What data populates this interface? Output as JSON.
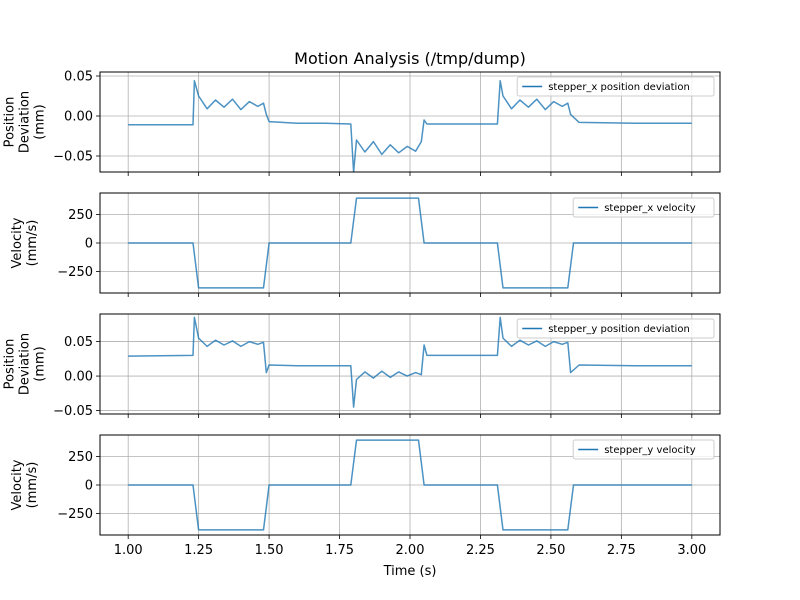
{
  "chart_data": {
    "type": "line",
    "title": "Motion Analysis (/tmp/dump)",
    "xlabel": "Time (s)",
    "xlim": [
      0.9,
      3.1
    ],
    "xticks": [
      1.0,
      1.25,
      1.5,
      1.75,
      2.0,
      2.25,
      2.5,
      2.75,
      3.0
    ],
    "xtick_labels": [
      "1.00",
      "1.25",
      "1.50",
      "1.75",
      "2.00",
      "2.25",
      "2.50",
      "2.75",
      "3.00"
    ],
    "grid": true,
    "line_color": "#1f77b4",
    "panels": [
      {
        "ylabel": [
          "Position",
          "Deviation",
          "(mm)"
        ],
        "ylim": [
          -0.07,
          0.055
        ],
        "yticks": [
          0.05,
          0.0,
          -0.05
        ],
        "ytick_labels": [
          "0.05",
          "0.00",
          "−0.05"
        ],
        "legend": "upper right",
        "series": [
          {
            "name": "stepper_x position deviation",
            "x": [
              1.0,
              1.23,
              1.235,
              1.25,
              1.28,
              1.31,
              1.34,
              1.37,
              1.4,
              1.43,
              1.46,
              1.48,
              1.49,
              1.5,
              1.6,
              1.7,
              1.79,
              1.8,
              1.81,
              1.84,
              1.87,
              1.9,
              1.93,
              1.96,
              1.99,
              2.02,
              2.04,
              2.05,
              2.06,
              2.1,
              2.2,
              2.31,
              2.32,
              2.33,
              2.36,
              2.39,
              2.42,
              2.45,
              2.48,
              2.51,
              2.54,
              2.56,
              2.57,
              2.6,
              2.8,
              3.0
            ],
            "y": [
              -0.011,
              -0.011,
              0.044,
              0.025,
              0.009,
              0.02,
              0.011,
              0.021,
              0.008,
              0.018,
              0.012,
              0.016,
              0.002,
              -0.007,
              -0.009,
              -0.009,
              -0.01,
              -0.07,
              -0.03,
              -0.045,
              -0.032,
              -0.048,
              -0.036,
              -0.046,
              -0.038,
              -0.044,
              -0.032,
              -0.005,
              -0.01,
              -0.01,
              -0.01,
              -0.01,
              0.044,
              0.025,
              0.009,
              0.02,
              0.011,
              0.021,
              0.008,
              0.018,
              0.012,
              0.016,
              0.002,
              -0.008,
              -0.009,
              -0.009
            ]
          }
        ]
      },
      {
        "ylabel": [
          "Velocity",
          "(mm/s)"
        ],
        "ylim": [
          -440,
          440
        ],
        "yticks": [
          250,
          0,
          -250
        ],
        "ytick_labels": [
          "250",
          "0",
          "−250"
        ],
        "legend": "upper right",
        "series": [
          {
            "name": "stepper_x velocity",
            "x": [
              1.0,
              1.23,
              1.25,
              1.48,
              1.5,
              1.79,
              1.81,
              2.03,
              2.05,
              2.31,
              2.33,
              2.56,
              2.58,
              3.0
            ],
            "y": [
              0,
              0,
              -395,
              -395,
              0,
              0,
              395,
              395,
              0,
              0,
              -395,
              -395,
              0,
              0
            ]
          }
        ]
      },
      {
        "ylabel": [
          "Position",
          "Deviation",
          "(mm)"
        ],
        "ylim": [
          -0.055,
          0.09
        ],
        "yticks": [
          0.05,
          0.0,
          -0.05
        ],
        "ytick_labels": [
          "0.05",
          "0.00",
          "−0.05"
        ],
        "legend": "upper right",
        "series": [
          {
            "name": "stepper_y position deviation",
            "x": [
              1.0,
              1.23,
              1.235,
              1.25,
              1.28,
              1.31,
              1.34,
              1.37,
              1.4,
              1.43,
              1.46,
              1.48,
              1.49,
              1.5,
              1.6,
              1.7,
              1.79,
              1.8,
              1.81,
              1.84,
              1.87,
              1.9,
              1.93,
              1.96,
              1.99,
              2.02,
              2.04,
              2.05,
              2.06,
              2.1,
              2.2,
              2.31,
              2.32,
              2.33,
              2.36,
              2.39,
              2.42,
              2.45,
              2.48,
              2.51,
              2.54,
              2.56,
              2.57,
              2.6,
              2.8,
              3.0
            ],
            "y": [
              0.029,
              0.03,
              0.085,
              0.055,
              0.043,
              0.052,
              0.045,
              0.051,
              0.043,
              0.05,
              0.046,
              0.049,
              0.005,
              0.016,
              0.015,
              0.015,
              0.015,
              -0.045,
              -0.005,
              0.006,
              -0.003,
              0.007,
              -0.002,
              0.006,
              0.0,
              0.005,
              0.002,
              0.045,
              0.03,
              0.03,
              0.03,
              0.03,
              0.085,
              0.055,
              0.043,
              0.052,
              0.045,
              0.051,
              0.043,
              0.05,
              0.046,
              0.049,
              0.005,
              0.016,
              0.015,
              0.015
            ]
          }
        ]
      },
      {
        "ylabel": [
          "Velocity",
          "(mm/s)"
        ],
        "ylim": [
          -440,
          440
        ],
        "yticks": [
          250,
          0,
          -250
        ],
        "ytick_labels": [
          "250",
          "0",
          "−250"
        ],
        "legend": "upper right",
        "series": [
          {
            "name": "stepper_y velocity",
            "x": [
              1.0,
              1.23,
              1.25,
              1.48,
              1.5,
              1.79,
              1.81,
              2.03,
              2.05,
              2.31,
              2.33,
              2.56,
              2.58,
              3.0
            ],
            "y": [
              0,
              0,
              -395,
              -395,
              0,
              0,
              395,
              395,
              0,
              0,
              -395,
              -395,
              0,
              0
            ]
          }
        ]
      }
    ]
  }
}
